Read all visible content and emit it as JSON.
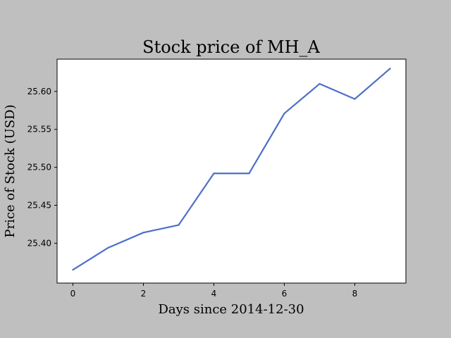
{
  "colors": {
    "figure_background": "#bfbfbf",
    "plot_background": "#ffffff",
    "line": "#4c6fc9",
    "axis": "#000000"
  },
  "chart_data": {
    "type": "line",
    "title": "Stock price of MH_A",
    "xlabel": "Days since 2014-12-30",
    "ylabel": "Price of Stock (USD)",
    "x": [
      0,
      1,
      2,
      3,
      4,
      5,
      6,
      7,
      8,
      9
    ],
    "series": [
      {
        "values": [
          25.365,
          25.394,
          25.414,
          25.424,
          25.492,
          25.492,
          25.571,
          25.61,
          25.59,
          25.63
        ]
      }
    ],
    "xlim": [
      -0.45,
      9.45
    ],
    "ylim": [
      25.3475,
      25.6425
    ],
    "xticks": [
      0,
      2,
      4,
      6,
      8
    ],
    "xtick_labels": [
      "0",
      "2",
      "4",
      "6",
      "8"
    ],
    "yticks": [
      25.4,
      25.45,
      25.5,
      25.55,
      25.6
    ],
    "ytick_labels": [
      "25.40",
      "25.45",
      "25.50",
      "25.55",
      "25.60"
    ],
    "grid": false,
    "legend": "none"
  }
}
